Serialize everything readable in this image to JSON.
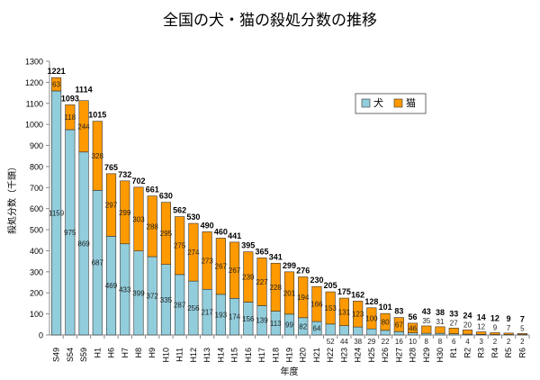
{
  "chart_data": {
    "type": "bar",
    "stacked": true,
    "title": "全国の犬・猫の殺処分数の推移",
    "xlabel": "年度",
    "ylabel": "殺処分数（千頭）",
    "ylim": [
      0,
      1300
    ],
    "yticks": [
      0,
      100,
      200,
      300,
      400,
      500,
      600,
      700,
      800,
      900,
      1000,
      1100,
      1200,
      1300
    ],
    "grid": false,
    "legend_position": "top-right",
    "categories": [
      "S49",
      "S54",
      "S59",
      "H1",
      "H6",
      "H7",
      "H8",
      "H9",
      "H10",
      "H11",
      "H12",
      "H13",
      "H14",
      "H15",
      "H16",
      "H17",
      "H18",
      "H19",
      "H20",
      "H21",
      "H22",
      "H23",
      "H24",
      "H25",
      "H26",
      "H27",
      "H28",
      "H29",
      "H30",
      "R1",
      "R2",
      "R3",
      "R4",
      "R5",
      "R6"
    ],
    "series": [
      {
        "name": "犬",
        "color": "#92CDDC",
        "values": [
          1159,
          975,
          869,
          687,
          469,
          433,
          399,
          372,
          335,
          287,
          256,
          217,
          193,
          174,
          156,
          139,
          113,
          99,
          82,
          64,
          52,
          44,
          38,
          29,
          22,
          16,
          10,
          8,
          8,
          6,
          4,
          3,
          2,
          2,
          2
        ]
      },
      {
        "name": "猫",
        "color": "#FF9900",
        "values": [
          63,
          118,
          244,
          328,
          297,
          299,
          303,
          288,
          295,
          275,
          274,
          273,
          267,
          267,
          239,
          227,
          228,
          201,
          194,
          166,
          153,
          131,
          123,
          100,
          80,
          67,
          46,
          35,
          31,
          27,
          20,
          12,
          9,
          7,
          5
        ]
      }
    ],
    "totals": [
      1221,
      1093,
      1114,
      1015,
      765,
      732,
      702,
      661,
      630,
      562,
      530,
      490,
      460,
      441,
      395,
      365,
      341,
      299,
      276,
      230,
      205,
      175,
      162,
      128,
      101,
      83,
      56,
      43,
      38,
      33,
      24,
      14,
      12,
      9,
      7
    ]
  }
}
